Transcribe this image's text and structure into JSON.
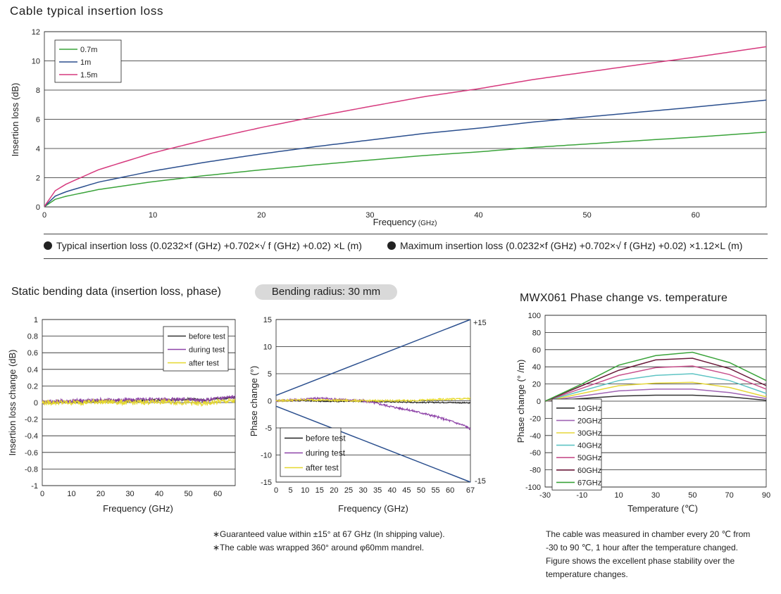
{
  "main_title": "Cable typical insertion loss",
  "formula_typical": "Typical insertion loss (0.0232×f (GHz) +0.702×√ f (GHz) +0.02) ×L (m)",
  "formula_max": "Maximum insertion loss (0.0232×f (GHz) +0.702×√ f (GHz) +0.02) ×1.12×L (m)",
  "bending_title": "Static bending data (insertion loss, phase)",
  "bending_radius": "Bending radius: 30 mm",
  "temp_title": "MWX061   Phase change vs. temperature",
  "notes_bending": [
    "∗Guaranteed value within ±15° at 67 GHz (In shipping value).",
    "∗The cable was wrapped 360° around φ60mm mandrel."
  ],
  "notes_temp": [
    "The cable was measured in chamber every 20 ℃ from",
    "-30 to 90 ℃, 1 hour after the temperature changed.",
    "Figure shows the excellent phase stability over the",
    "temperature changes."
  ],
  "chart_data": [
    {
      "type": "line",
      "title": "Cable typical insertion loss",
      "xlabel": "Frequency",
      "xlabel_unit": "(GHz)",
      "ylabel": "Insertion loss (dB)",
      "xlim": [
        0,
        66.5
      ],
      "ylim": [
        0,
        12
      ],
      "xticks": [
        0,
        10,
        20,
        30,
        40,
        50,
        60
      ],
      "yticks": [
        0,
        2,
        4,
        6,
        8,
        10,
        12
      ],
      "grid": true,
      "legend": "top-left",
      "series": [
        {
          "name": "0.7m",
          "color": "#3aa33a",
          "x": [
            0,
            1,
            2,
            5,
            10,
            15,
            20,
            25,
            30,
            35,
            40,
            45,
            50,
            55,
            60,
            66.5
          ],
          "y": [
            0.01,
            0.52,
            0.73,
            1.19,
            1.73,
            2.16,
            2.54,
            2.88,
            3.21,
            3.52,
            3.77,
            4.07,
            4.31,
            4.55,
            4.78,
            5.12
          ]
        },
        {
          "name": "1m",
          "color": "#2b4f8e",
          "x": [
            0,
            1,
            2,
            5,
            10,
            15,
            20,
            25,
            30,
            35,
            40,
            45,
            50,
            55,
            60,
            66.5
          ],
          "y": [
            0.02,
            0.74,
            1.04,
            1.7,
            2.46,
            3.08,
            3.63,
            4.13,
            4.58,
            5.03,
            5.39,
            5.81,
            6.16,
            6.5,
            6.84,
            7.31
          ]
        },
        {
          "name": "1.5m",
          "color": "#d63a7e",
          "x": [
            0,
            1,
            2,
            5,
            10,
            15,
            20,
            25,
            30,
            35,
            40,
            45,
            50,
            55,
            60,
            66.5
          ],
          "y": [
            0.03,
            1.11,
            1.56,
            2.55,
            3.7,
            4.62,
            5.44,
            6.19,
            6.88,
            7.55,
            8.09,
            8.72,
            9.24,
            9.76,
            10.26,
            10.97
          ]
        }
      ]
    },
    {
      "type": "line",
      "xlabel": "Frequency (GHz)",
      "ylabel": "Insertion loss change (dB)",
      "xlim": [
        0,
        66
      ],
      "ylim": [
        -1,
        1
      ],
      "xticks": [
        0,
        10,
        20,
        30,
        40,
        50,
        60
      ],
      "yticks": [
        -1,
        -0.8,
        -0.6,
        -0.4,
        -0.2,
        0,
        0.2,
        0.4,
        0.6,
        0.8,
        1
      ],
      "ytick_labels": [
        "-1",
        "-0.8",
        "-0.6",
        "-0.4",
        "-0.2",
        "0",
        "0.2",
        "0.4",
        "0.6",
        "0.8",
        "1"
      ],
      "grid": true,
      "legend": "top-right",
      "series": [
        {
          "name": "before test",
          "color": "#333333",
          "x": [
            0,
            10,
            20,
            30,
            40,
            50,
            55,
            60,
            66
          ],
          "y": [
            0.0,
            0.01,
            0.02,
            0.02,
            0.03,
            0.04,
            0.03,
            0.05,
            0.06
          ],
          "noise": 0.015
        },
        {
          "name": "during test",
          "color": "#8e44a8",
          "x": [
            0,
            10,
            20,
            30,
            40,
            50,
            55,
            60,
            66
          ],
          "y": [
            0.01,
            0.02,
            0.03,
            0.03,
            0.04,
            0.04,
            0.02,
            0.05,
            0.07
          ],
          "noise": 0.025
        },
        {
          "name": "after test",
          "color": "#e5d82e",
          "x": [
            0,
            10,
            20,
            30,
            40,
            50,
            55,
            60,
            66
          ],
          "y": [
            0.0,
            0.0,
            0.01,
            0.0,
            0.01,
            0.0,
            -0.02,
            0.01,
            0.02
          ],
          "noise": 0.03
        }
      ]
    },
    {
      "type": "line",
      "xlabel": "Frequency (GHz)",
      "ylabel": "Phase change (°)",
      "xlim": [
        0,
        67
      ],
      "ylim": [
        -15,
        15
      ],
      "xticks": [
        0,
        5,
        10,
        15,
        20,
        25,
        30,
        35,
        40,
        45,
        50,
        55,
        60,
        67
      ],
      "yticks": [
        -15,
        -10,
        -5,
        0,
        5,
        10,
        15
      ],
      "grid": true,
      "legend": "bottom-left",
      "annotations": [
        "+15",
        "-15"
      ],
      "series": [
        {
          "name": "before test",
          "color": "#222222",
          "x": [
            0,
            10,
            20,
            30,
            40,
            50,
            60,
            67
          ],
          "y": [
            0,
            0,
            -0.1,
            -0.1,
            -0.2,
            -0.3,
            -0.3,
            -0.4
          ],
          "noise": 0.1
        },
        {
          "name": "during test",
          "color": "#8e44a8",
          "x": [
            0,
            10,
            15,
            20,
            30,
            35,
            40,
            45,
            50,
            55,
            60,
            65,
            67
          ],
          "y": [
            0,
            0.3,
            0.5,
            0.3,
            0,
            -0.5,
            -1.1,
            -1.6,
            -2.2,
            -2.9,
            -3.7,
            -4.6,
            -5.2
          ],
          "noise": 0.2
        },
        {
          "name": "after test",
          "color": "#e5d82e",
          "x": [
            0,
            10,
            20,
            30,
            40,
            50,
            60,
            67
          ],
          "y": [
            0,
            0.2,
            0.1,
            0,
            0,
            0.1,
            0.3,
            0.4
          ],
          "noise": 0.18
        },
        {
          "name": "",
          "color": "#2b4f8e",
          "x": [
            0,
            67
          ],
          "y": [
            1,
            15
          ]
        },
        {
          "name": "",
          "color": "#2b4f8e",
          "x": [
            0,
            67
          ],
          "y": [
            -1,
            -15
          ]
        }
      ]
    },
    {
      "type": "line",
      "xlabel": "Temperature (℃)",
      "ylabel": "Phase change (° /m)",
      "xlim": [
        -30,
        90
      ],
      "ylim": [
        -100,
        100
      ],
      "xticks": [
        -30,
        -10,
        10,
        30,
        50,
        70,
        90
      ],
      "yticks": [
        -100,
        -80,
        -60,
        -40,
        -20,
        0,
        20,
        40,
        60,
        80,
        100
      ],
      "grid": true,
      "legend": "bottom-left",
      "series": [
        {
          "name": "10GHz",
          "color": "#333333",
          "x": [
            -30,
            -10,
            10,
            30,
            50,
            70,
            90
          ],
          "y": [
            0,
            3,
            6,
            7,
            7,
            5,
            1
          ]
        },
        {
          "name": "20GHz",
          "color": "#a064b4",
          "x": [
            -30,
            -10,
            10,
            30,
            50,
            70,
            90
          ],
          "y": [
            0,
            6,
            12,
            14,
            14,
            10,
            3
          ]
        },
        {
          "name": "30GHz",
          "color": "#e6d73a",
          "x": [
            -30,
            -10,
            10,
            30,
            50,
            70,
            90
          ],
          "y": [
            0,
            9,
            18,
            21,
            22,
            16,
            5
          ]
        },
        {
          "name": "40GHz",
          "color": "#5fc4c4",
          "x": [
            -30,
            -10,
            10,
            30,
            50,
            70,
            90
          ],
          "y": [
            0,
            12,
            24,
            30,
            32,
            24,
            9
          ]
        },
        {
          "name": "50GHz",
          "color": "#c8508c",
          "x": [
            -30,
            -10,
            10,
            30,
            50,
            70,
            90
          ],
          "y": [
            0,
            15,
            30,
            39,
            41,
            31,
            14
          ]
        },
        {
          "name": "60GHz",
          "color": "#6a1a3a",
          "x": [
            -30,
            -10,
            10,
            30,
            50,
            70,
            90
          ],
          "y": [
            0,
            18,
            36,
            48,
            50,
            38,
            18
          ]
        },
        {
          "name": "67GHz",
          "color": "#3aa33a",
          "x": [
            -30,
            -10,
            10,
            30,
            50,
            70,
            90
          ],
          "y": [
            0,
            20,
            42,
            53,
            57,
            45,
            24
          ]
        }
      ]
    }
  ]
}
